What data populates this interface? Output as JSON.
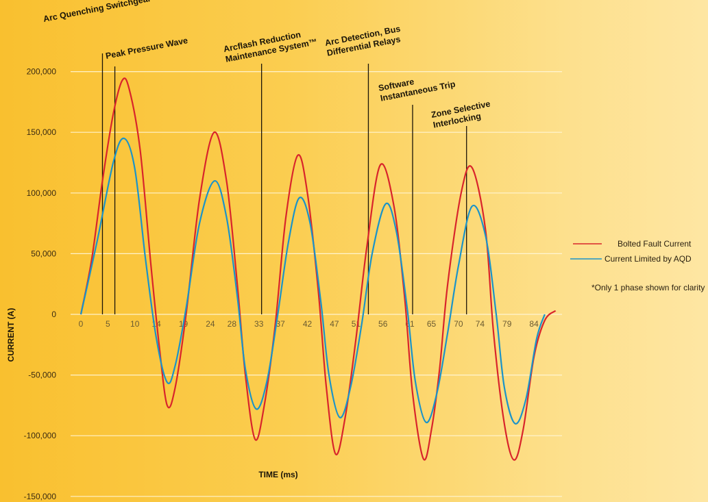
{
  "chart_data": {
    "type": "line",
    "xlabel": "TIME (ms)",
    "ylabel": "CURRENT (A)",
    "xlim": [
      0,
      88
    ],
    "ylim": [
      -150000,
      200000
    ],
    "x_ticks": [
      "0",
      "5",
      "10",
      "14",
      "19",
      "24",
      "28",
      "33",
      "37",
      "42",
      "47",
      "51",
      "56",
      "61",
      "65",
      "70",
      "74",
      "79",
      "84"
    ],
    "y_ticks": [
      "200,000",
      "150,000",
      "100,000",
      "50,000",
      "0",
      "-50,000",
      "-100,000",
      "-150,000"
    ],
    "y_tick_values": [
      200000,
      150000,
      100000,
      50000,
      0,
      -50000,
      -100000,
      -150000
    ],
    "x_tick_values": [
      0,
      5,
      10,
      14,
      19,
      24,
      28,
      33,
      37,
      42,
      47,
      51,
      56,
      61,
      65,
      70,
      74,
      79,
      84
    ],
    "series": [
      {
        "name": "Bolted Fault Current",
        "color": "#d8242b",
        "points": [
          [
            0,
            0
          ],
          [
            2,
            45000
          ],
          [
            4,
            110000
          ],
          [
            6,
            165000
          ],
          [
            7.7,
            193000
          ],
          [
            9,
            185000
          ],
          [
            11,
            135000
          ],
          [
            13,
            40000
          ],
          [
            14.5,
            -25000
          ],
          [
            16,
            -75000
          ],
          [
            17.5,
            -60000
          ],
          [
            19.5,
            0
          ],
          [
            22,
            95000
          ],
          [
            24.7,
            150000
          ],
          [
            27,
            110000
          ],
          [
            29,
            25000
          ],
          [
            30.5,
            -50000
          ],
          [
            32.3,
            -103000
          ],
          [
            34,
            -75000
          ],
          [
            36,
            -10000
          ],
          [
            38,
            80000
          ],
          [
            40.2,
            131000
          ],
          [
            42,
            100000
          ],
          [
            44,
            20000
          ],
          [
            45.5,
            -60000
          ],
          [
            47.2,
            -115000
          ],
          [
            49,
            -85000
          ],
          [
            51,
            -20000
          ],
          [
            53,
            55000
          ],
          [
            55.5,
            123000
          ],
          [
            58,
            90000
          ],
          [
            60,
            15000
          ],
          [
            61.5,
            -65000
          ],
          [
            63.5,
            -119000
          ],
          [
            65,
            -95000
          ],
          [
            66.5,
            -45000
          ],
          [
            68,
            25000
          ],
          [
            70.5,
            100000
          ],
          [
            72.5,
            121000
          ],
          [
            75,
            70000
          ],
          [
            76.5,
            -15000
          ],
          [
            78.5,
            -90000
          ],
          [
            80.3,
            -120000
          ],
          [
            82,
            -95000
          ],
          [
            84,
            -35000
          ],
          [
            86,
            -5000
          ],
          [
            88,
            3000
          ]
        ]
      },
      {
        "name": "Current Limited by AQD",
        "color": "#1a93c9",
        "points": [
          [
            0,
            0
          ],
          [
            3,
            60000
          ],
          [
            6,
            125000
          ],
          [
            8,
            145000
          ],
          [
            10,
            120000
          ],
          [
            12,
            45000
          ],
          [
            14,
            -20000
          ],
          [
            16,
            -56000
          ],
          [
            17.5,
            -42000
          ],
          [
            19.5,
            5000
          ],
          [
            22,
            75000
          ],
          [
            24.8,
            110000
          ],
          [
            27,
            80000
          ],
          [
            29,
            15000
          ],
          [
            30.5,
            -45000
          ],
          [
            32.5,
            -78000
          ],
          [
            34.5,
            -55000
          ],
          [
            36.5,
            0
          ],
          [
            38.5,
            60000
          ],
          [
            40.5,
            96000
          ],
          [
            42.5,
            75000
          ],
          [
            44.5,
            10000
          ],
          [
            46,
            -50000
          ],
          [
            48,
            -85000
          ],
          [
            50,
            -60000
          ],
          [
            52,
            -10000
          ],
          [
            54,
            50000
          ],
          [
            56.5,
            91000
          ],
          [
            58.5,
            68000
          ],
          [
            60.5,
            5000
          ],
          [
            62,
            -55000
          ],
          [
            64,
            -89000
          ],
          [
            66,
            -65000
          ],
          [
            68,
            -15000
          ],
          [
            70,
            40000
          ],
          [
            72.5,
            89000
          ],
          [
            75,
            65000
          ],
          [
            77,
            0
          ],
          [
            78.5,
            -60000
          ],
          [
            80.5,
            -90000
          ],
          [
            82.5,
            -70000
          ],
          [
            84.5,
            -20000
          ],
          [
            86,
            0
          ]
        ]
      }
    ],
    "annotations": [
      {
        "id": "arc-quenching",
        "lines": [
          "Arc Quenching Switchgear"
        ],
        "x": 4,
        "color": "#1a7fc4"
      },
      {
        "id": "peak-pressure",
        "lines": [
          "Peak Pressure Wave"
        ],
        "x": 6.3,
        "color": "#ffffff"
      },
      {
        "id": "arcflash-reduction",
        "lines": [
          "Arcflash Reduction",
          "Maintenance System™"
        ],
        "x": 33.5,
        "color": "#1a1408"
      },
      {
        "id": "arc-detection",
        "lines": [
          "Arc Detection, Bus",
          "Differential Relays"
        ],
        "x": 53.3,
        "color": "#1a1408"
      },
      {
        "id": "software-trip",
        "lines": [
          "Software",
          "Instantaneous Trip"
        ],
        "x": 61.5,
        "color": "#1a1408"
      },
      {
        "id": "zone-selective",
        "lines": [
          "Zone Selective",
          "Interlocking"
        ],
        "x": 71.5,
        "color": "#1a1408"
      }
    ],
    "legend_position": "right",
    "grid": true,
    "note": "*Only 1 phase shown for clarity"
  }
}
